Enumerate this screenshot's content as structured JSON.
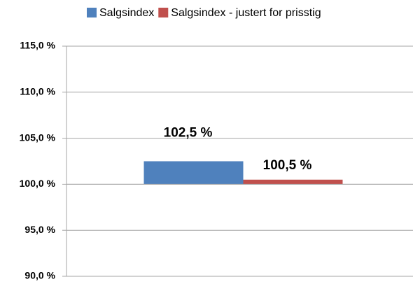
{
  "chart_data": {
    "type": "bar",
    "categories": [
      null
    ],
    "series": [
      {
        "name": "Salgsindex",
        "color": "#4f81bd",
        "values": [
          102.5
        ],
        "value_labels": [
          "102,5 %"
        ]
      },
      {
        "name": "Salgsindex - justert for prisstig",
        "color": "#c0504d",
        "values": [
          100.5
        ],
        "value_labels": [
          "100,5 %"
        ]
      }
    ],
    "ylim": [
      90,
      115
    ],
    "yticks": [
      {
        "value": 90,
        "label": "90,0 %"
      },
      {
        "value": 95,
        "label": "95,0 %"
      },
      {
        "value": 100,
        "label": "100,0 %"
      },
      {
        "value": 105,
        "label": "105,0 %"
      },
      {
        "value": 110,
        "label": "110,0 %"
      },
      {
        "value": 115,
        "label": "115,0 %"
      }
    ],
    "x_axis_crosses": 100,
    "grid": true,
    "legend": "top"
  }
}
